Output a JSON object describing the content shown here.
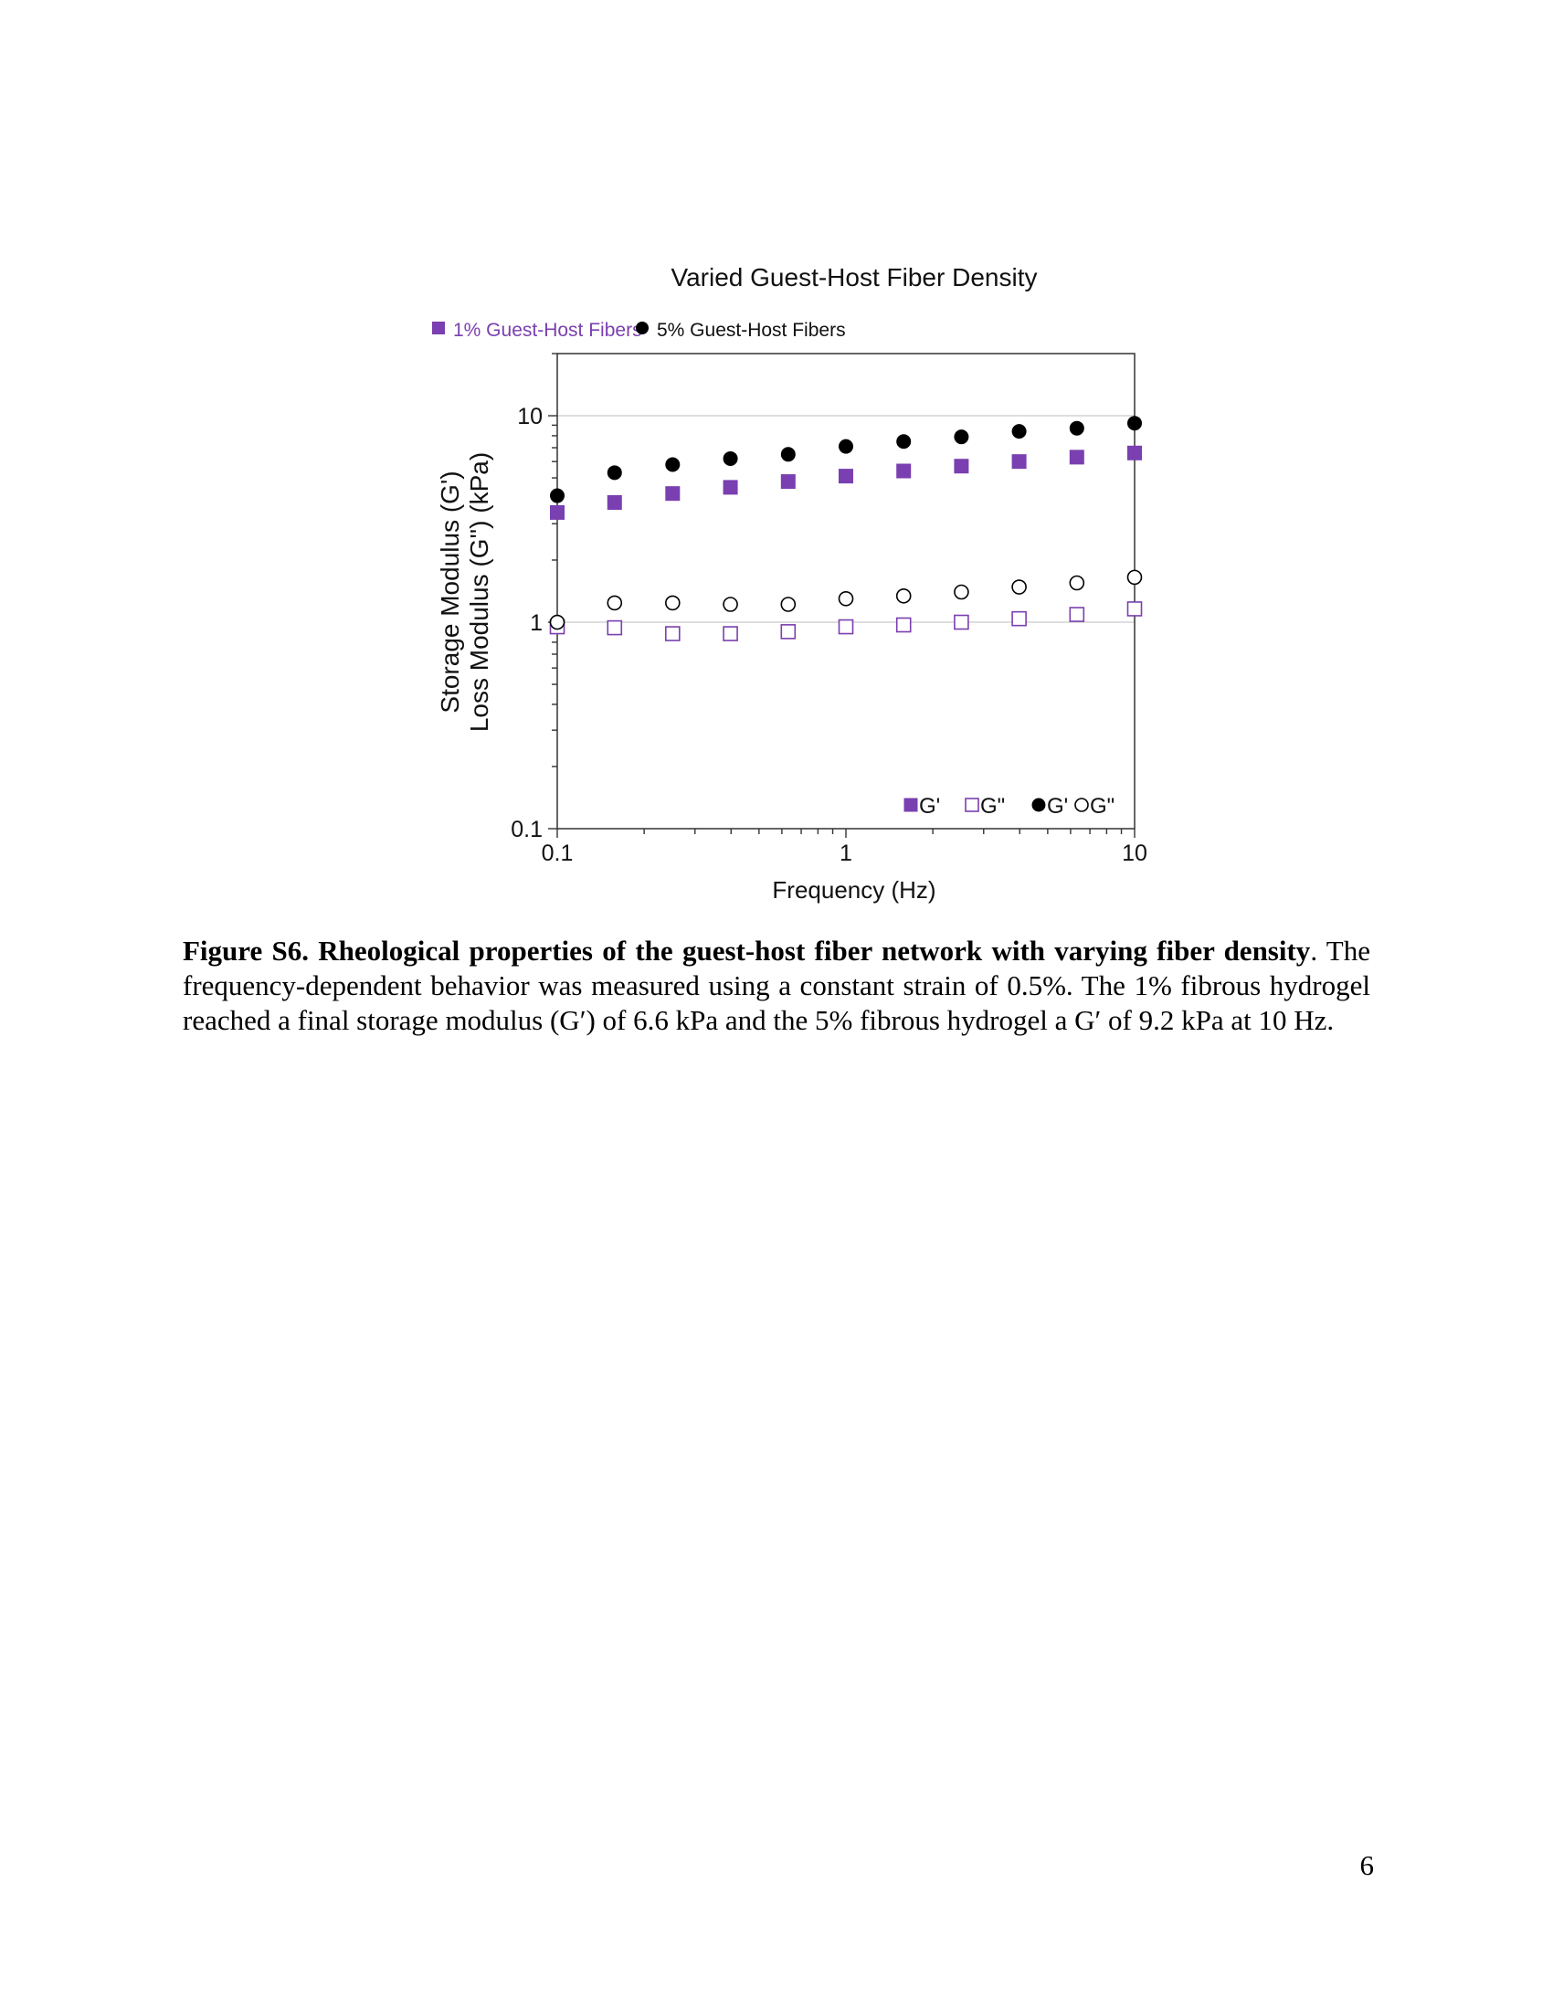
{
  "chart_data": {
    "type": "scatter",
    "title": "Varied Guest-Host Fiber Density",
    "xlabel": "Frequency (Hz)",
    "ylabel_lines": [
      "Storage Modulus (G')",
      "Loss Modulus (G'') (kPa)"
    ],
    "xscale": "log",
    "yscale": "log",
    "xlim": [
      0.1,
      10
    ],
    "ylim": [
      0.1,
      20
    ],
    "xticks": [
      {
        "value": 0.1,
        "label": "0.1"
      },
      {
        "value": 1,
        "label": "1"
      },
      {
        "value": 10,
        "label": "10"
      }
    ],
    "yticks": [
      {
        "value": 0.1,
        "label": "0.1"
      },
      {
        "value": 1,
        "label": "1"
      },
      {
        "value": 10,
        "label": "10"
      }
    ],
    "gridlines_y": [
      1,
      10
    ],
    "legend_top": [
      {
        "label": "1% Guest-Host Fibers",
        "marker": "square-filled",
        "color": "#7a3fb0"
      },
      {
        "label": "5% Guest-Host Fibers",
        "marker": "circle-filled",
        "color": "#000000"
      }
    ],
    "legend_bottom": [
      {
        "label": "G'",
        "marker": "square-filled",
        "color": "#7a3fb0"
      },
      {
        "label": "G\"",
        "marker": "square-open",
        "color": "#7a3fb0"
      },
      {
        "label": "G'",
        "marker": "circle-filled",
        "color": "#000000"
      },
      {
        "label": "G\"",
        "marker": "circle-open",
        "color": "#000000"
      }
    ],
    "x": [
      0.1,
      0.158,
      0.251,
      0.398,
      0.631,
      1.0,
      1.585,
      2.512,
      3.981,
      6.31,
      10.0
    ],
    "series": [
      {
        "group": "1% Guest-Host Fibers",
        "name": "G'",
        "marker": "square-filled",
        "color": "#7a3fb0",
        "values": [
          3.4,
          3.8,
          4.2,
          4.5,
          4.8,
          5.1,
          5.4,
          5.7,
          6.0,
          6.3,
          6.6
        ]
      },
      {
        "group": "1% Guest-Host Fibers",
        "name": "G\"",
        "marker": "square-open",
        "color": "#7a3fb0",
        "values": [
          0.95,
          0.94,
          0.88,
          0.88,
          0.9,
          0.95,
          0.97,
          1.0,
          1.04,
          1.09,
          1.16
        ]
      },
      {
        "group": "5% Guest-Host Fibers",
        "name": "G'",
        "marker": "circle-filled",
        "color": "#000000",
        "values": [
          4.1,
          5.3,
          5.8,
          6.2,
          6.5,
          7.1,
          7.5,
          7.9,
          8.4,
          8.7,
          9.2
        ]
      },
      {
        "group": "5% Guest-Host Fibers",
        "name": "G\"",
        "marker": "circle-open",
        "color": "#000000",
        "values": [
          1.0,
          1.24,
          1.24,
          1.22,
          1.22,
          1.3,
          1.34,
          1.4,
          1.48,
          1.55,
          1.65
        ]
      }
    ]
  },
  "caption": {
    "lead": "Figure S6. Rheological properties of the guest-host fiber network with varying fiber density",
    "lead_punct": ".",
    "body": "The frequency-dependent behavior was measured using a constant strain of 0.5%. The 1% fibrous hydrogel reached a final storage modulus (G′) of 6.6 kPa and the 5% fibrous hydrogel a G′ of 9.2 kPa at 10 Hz."
  },
  "page_number": "6"
}
